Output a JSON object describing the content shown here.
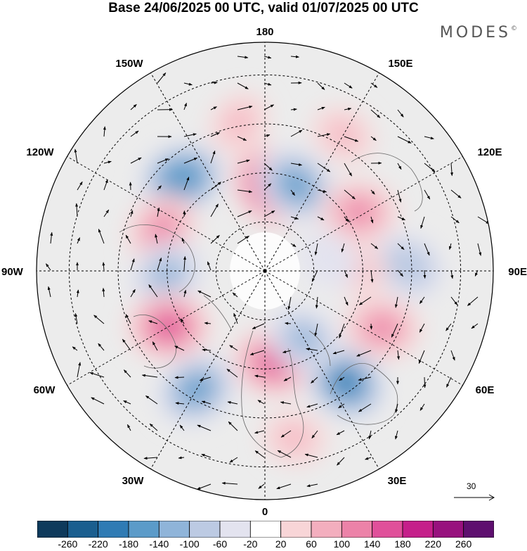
{
  "title": "Base 24/06/2025 00 UTC, valid 01/07/2025 00 UTC",
  "brand": "MODES",
  "brand_mark": "©",
  "longitude_labels": {
    "top": "180",
    "bottom": "0",
    "left": "90W",
    "right": "90E",
    "upper_left_150": "150W",
    "upper_left_120": "120W",
    "upper_right_150": "150E",
    "upper_right_120": "120E",
    "lower_left_60": "60W",
    "lower_left_30": "30W",
    "lower_right_60": "60E",
    "lower_right_30": "30E"
  },
  "wind_scale": {
    "value": "30"
  },
  "colorbar": {
    "colors": [
      "#0e3a5c",
      "#1a5e8f",
      "#2f7bb4",
      "#5b9bc9",
      "#8fb4d9",
      "#bccae3",
      "#e3e3ef",
      "#ffffff",
      "#f8d5d7",
      "#f3aebe",
      "#ec82a8",
      "#e0509a",
      "#c51f8a",
      "#98117e",
      "#5e0f6f"
    ],
    "tick_labels": [
      "-260",
      "-220",
      "-180",
      "-140",
      "-100",
      "-60",
      "-20",
      "20",
      "60",
      "100",
      "140",
      "180",
      "220",
      "260"
    ]
  },
  "anomaly_centers": [
    {
      "lon": 176,
      "lat": 64,
      "value": 180
    },
    {
      "lon": 160,
      "lat": 62,
      "value": -160
    },
    {
      "lon": -138,
      "lat": 52,
      "value": -180
    },
    {
      "lon": -112,
      "lat": 56,
      "value": 120
    },
    {
      "lon": -88,
      "lat": 60,
      "value": -120
    },
    {
      "lon": -60,
      "lat": 56,
      "value": 150
    },
    {
      "lon": -30,
      "lat": 48,
      "value": -150
    },
    {
      "lon": 6,
      "lat": 62,
      "value": 170
    },
    {
      "lon": 36,
      "lat": 48,
      "value": -200
    },
    {
      "lon": 30,
      "lat": 66,
      "value": -110
    },
    {
      "lon": 64,
      "lat": 50,
      "value": 110
    },
    {
      "lon": 92,
      "lat": 46,
      "value": -100
    },
    {
      "lon": 92,
      "lat": 62,
      "value": 60
    },
    {
      "lon": 122,
      "lat": 56,
      "value": 110
    },
    {
      "lon": 100,
      "lat": 70,
      "value": -60
    },
    {
      "lon": 150,
      "lat": 42,
      "value": 80
    },
    {
      "lon": -170,
      "lat": 44,
      "value": 60
    },
    {
      "lon": 10,
      "lat": 38,
      "value": 80
    }
  ]
}
